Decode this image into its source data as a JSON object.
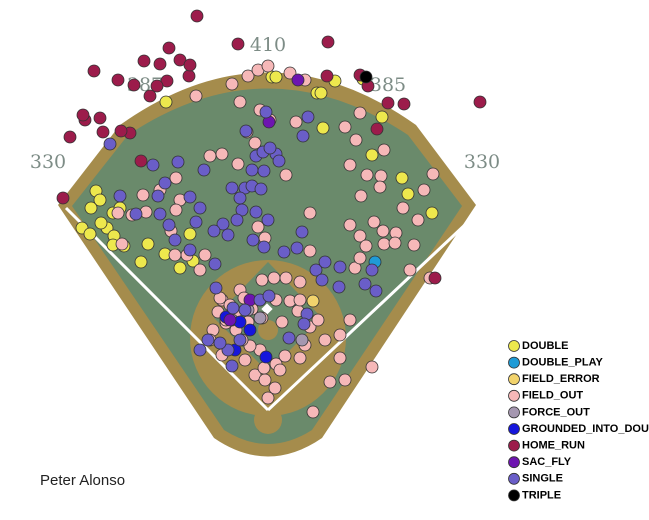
{
  "chart_data": {
    "type": "scatter",
    "title": "Peter Alonso",
    "annotations": [
      "330",
      "387",
      "410",
      "385",
      "330"
    ],
    "series": [
      {
        "name": "DOUBLE",
        "color": "#ede84d",
        "x": [
          166,
          272,
          335,
          323,
          372,
          382,
          317,
          321,
          402,
          408,
          432,
          96,
          100,
          91,
          82,
          90,
          113,
          107,
          114,
          124,
          141,
          148,
          165,
          190,
          180,
          193,
          276,
          363,
          113,
          120,
          101
        ],
        "y": [
          102,
          77,
          81,
          128,
          155,
          117,
          93,
          93,
          178,
          194,
          213,
          191,
          200,
          208,
          228,
          234,
          213,
          228,
          236,
          246,
          262,
          244,
          254,
          234,
          268,
          261,
          77,
          79,
          245,
          208,
          223
        ]
      },
      {
        "name": "DOUBLE_PLAY",
        "color": "#1f9bd6",
        "x": [
          375
        ],
        "y": [
          262
        ]
      },
      {
        "name": "FIELD_ERROR",
        "color": "#f2d36c",
        "x": [
          313
        ],
        "y": [
          301
        ]
      },
      {
        "name": "FIELD_OUT",
        "color": "#f6b8b8",
        "x": [
          232,
          248,
          258,
          268,
          290,
          305,
          196,
          240,
          260,
          296,
          345,
          360,
          356,
          384,
          350,
          367,
          381,
          380,
          403,
          418,
          424,
          433,
          396,
          383,
          384,
          374,
          361,
          360,
          350,
          366,
          355,
          360,
          395,
          414,
          430,
          410,
          210,
          222,
          238,
          247,
          255,
          270,
          286,
          176,
          180,
          176,
          160,
          146,
          171,
          187,
          175,
          205,
          200,
          143,
          122,
          118,
          132,
          258,
          265,
          310,
          310,
          240,
          274,
          262,
          286,
          300,
          222,
          230,
          244,
          252,
          262,
          276,
          282,
          290,
          298,
          310,
          318,
          325,
          305,
          300,
          285,
          276,
          260,
          250,
          242,
          236,
          226,
          213,
          210,
          222,
          245,
          255,
          265,
          275,
          268,
          280,
          340,
          345,
          330,
          350,
          372,
          313,
          220,
          248,
          236,
          218,
          264,
          340,
          300,
          226
        ],
        "y": [
          84,
          76,
          70,
          66,
          73,
          80,
          96,
          102,
          110,
          122,
          127,
          113,
          140,
          150,
          165,
          175,
          176,
          187,
          208,
          220,
          190,
          174,
          233,
          231,
          244,
          222,
          196,
          236,
          225,
          246,
          268,
          258,
          243,
          245,
          278,
          270,
          156,
          154,
          164,
          132,
          143,
          120,
          175,
          178,
          200,
          210,
          190,
          212,
          231,
          255,
          255,
          255,
          270,
          195,
          244,
          213,
          215,
          227,
          238,
          213,
          251,
          290,
          278,
          280,
          278,
          282,
          300,
          305,
          298,
          309,
          318,
          300,
          322,
          301,
          311,
          327,
          320,
          340,
          345,
          358,
          356,
          364,
          350,
          346,
          340,
          330,
          323,
          330,
          340,
          355,
          360,
          375,
          380,
          388,
          398,
          370,
          358,
          380,
          382,
          320,
          367,
          412,
          298,
          322,
          312,
          312,
          368,
          335,
          300,
          320
        ]
      },
      {
        "name": "FORCE_OUT",
        "color": "#a597b0",
        "x": [
          260,
          302,
          232,
          248
        ],
        "y": [
          318,
          340,
          320,
          310
        ]
      },
      {
        "name": "GROUNDED_INTO_DOUBLE",
        "color": "#1616dc",
        "x": [
          235,
          266,
          240,
          226,
          250
        ],
        "y": [
          350,
          357,
          322,
          317,
          330
        ]
      },
      {
        "name": "HOME_RUN",
        "color": "#9c1c4b",
        "x": [
          197,
          328,
          238,
          169,
          144,
          94,
          180,
          189,
          118,
          167,
          157,
          150,
          134,
          100,
          85,
          70,
          63,
          83,
          130,
          121,
          103,
          141,
          360,
          388,
          404,
          480,
          368,
          377,
          327,
          190,
          160,
          435
        ],
        "y": [
          16,
          42,
          44,
          48,
          61,
          71,
          60,
          76,
          80,
          81,
          86,
          96,
          85,
          118,
          120,
          137,
          198,
          115,
          133,
          131,
          132,
          161,
          75,
          103,
          104,
          102,
          86,
          129,
          76,
          65,
          64,
          278
        ]
      },
      {
        "name": "SAC_FLY",
        "color": "#6d14b0",
        "x": [
          298,
          269,
          250,
          230
        ],
        "y": [
          80,
          122,
          300,
          320
        ]
      },
      {
        "name": "SINGLE",
        "color": "#6a5ec8",
        "x": [
          246,
          256,
          245,
          232,
          240,
          252,
          252,
          264,
          263,
          276,
          270,
          279,
          242,
          261,
          237,
          223,
          214,
          228,
          200,
          196,
          165,
          158,
          160,
          190,
          204,
          178,
          153,
          120,
          169,
          175,
          190,
          256,
          268,
          264,
          253,
          284,
          297,
          302,
          316,
          325,
          340,
          322,
          339,
          365,
          110,
          136,
          303,
          308,
          266,
          215,
          372,
          376,
          228,
          232,
          220,
          208,
          200,
          240,
          216,
          233,
          260,
          245,
          269,
          307,
          304,
          289
        ],
        "y": [
          131,
          156,
          188,
          188,
          198,
          186,
          170,
          171,
          152,
          154,
          148,
          161,
          210,
          189,
          220,
          224,
          231,
          235,
          208,
          222,
          183,
          196,
          214,
          197,
          170,
          162,
          165,
          196,
          225,
          240,
          250,
          212,
          220,
          247,
          240,
          252,
          248,
          232,
          270,
          262,
          267,
          280,
          287,
          284,
          144,
          214,
          136,
          117,
          112,
          264,
          270,
          291,
          350,
          366,
          343,
          340,
          350,
          340,
          288,
          308,
          300,
          310,
          296,
          314,
          324,
          338
        ]
      },
      {
        "name": "TRIPLE",
        "color": "#000000",
        "x": [
          366
        ],
        "y": [
          77
        ]
      }
    ]
  }
}
